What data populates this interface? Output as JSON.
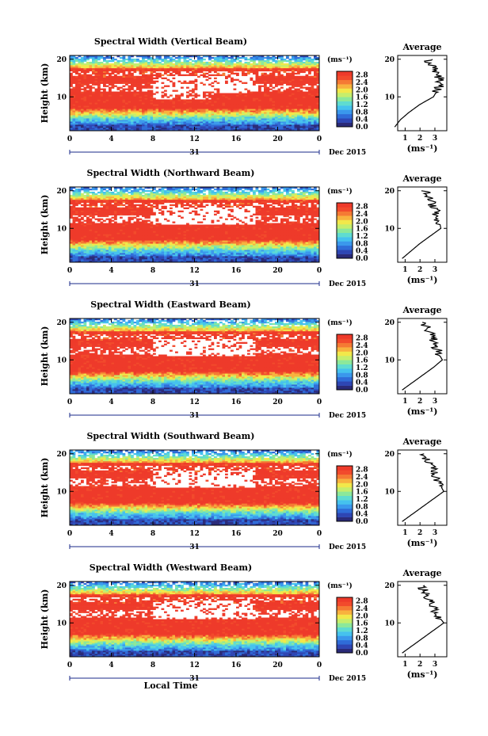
{
  "figure": {
    "xlabel": "Local Time",
    "ylabel": "Height (km)",
    "day_label": "31",
    "month_label": "Dec 2015",
    "colorbar_unit": "(ms⁻¹)",
    "avg_title": "Average",
    "avg_xlabel": "(ms⁻¹)"
  },
  "colormap": [
    "#2a2a78",
    "#2e46b4",
    "#2f6cd8",
    "#3a98ec",
    "#45c2ee",
    "#5fdcd0",
    "#8ce89a",
    "#c6ee6c",
    "#f2e84a",
    "#f8b23e",
    "#f57a34",
    "#f24a2c",
    "#ee3a2a"
  ],
  "chart_data": [
    {
      "type": "heatmap",
      "title": "Spectral Width (Vertical Beam)",
      "x_ticks": [
        "0",
        "4",
        "8",
        "12",
        "16",
        "20",
        "0"
      ],
      "xlim": [
        0,
        24
      ],
      "y_ticks": [
        "20",
        "10"
      ],
      "ylim": [
        1,
        21
      ],
      "colorbar_ticks": [
        "2.8",
        "2.4",
        "2.0",
        "1.6",
        "1.2",
        "0.8",
        "0.4",
        "0.0"
      ],
      "clim": [
        0,
        3.0
      ],
      "profile": [
        {
          "h": 2,
          "v": 0.3
        },
        {
          "h": 4,
          "v": 0.7
        },
        {
          "h": 6,
          "v": 1.3
        },
        {
          "h": 8,
          "v": 2.0
        },
        {
          "h": 10,
          "v": 2.9
        },
        {
          "h": 12,
          "v": 3.2
        },
        {
          "h": 14,
          "v": 3.4
        },
        {
          "h": 16,
          "v": 3.2
        },
        {
          "h": 18,
          "v": 2.8
        },
        {
          "h": 20,
          "v": 2.5
        }
      ],
      "avg_xticks": [
        "1",
        "2",
        "3"
      ],
      "avg_xlim": [
        0.5,
        3.8
      ],
      "avg_yticks": [
        "20",
        "10"
      ]
    },
    {
      "type": "heatmap",
      "title": "Spectral Width (Northward Beam)",
      "x_ticks": [
        "0",
        "4",
        "8",
        "12",
        "16",
        "20",
        "0"
      ],
      "xlim": [
        0,
        24
      ],
      "y_ticks": [
        "20",
        "10"
      ],
      "ylim": [
        1,
        21
      ],
      "colorbar_ticks": [
        "2.8",
        "2.4",
        "2.0",
        "1.6",
        "1.2",
        "0.8",
        "0.4",
        "0.0"
      ],
      "clim": [
        0,
        3.0
      ],
      "profile": [
        {
          "h": 2,
          "v": 0.8
        },
        {
          "h": 4,
          "v": 1.4
        },
        {
          "h": 6,
          "v": 2.0
        },
        {
          "h": 8,
          "v": 2.7
        },
        {
          "h": 10,
          "v": 3.4
        },
        {
          "h": 12,
          "v": 3.3
        },
        {
          "h": 14,
          "v": 3.1
        },
        {
          "h": 16,
          "v": 2.9
        },
        {
          "h": 18,
          "v": 2.6
        },
        {
          "h": 20,
          "v": 2.4
        }
      ],
      "avg_xticks": [
        "1",
        "2",
        "3"
      ],
      "avg_xlim": [
        0.5,
        3.8
      ],
      "avg_yticks": [
        "20",
        "10"
      ]
    },
    {
      "type": "heatmap",
      "title": "Spectral Width (Eastward Beam)",
      "x_ticks": [
        "0",
        "4",
        "8",
        "12",
        "16",
        "20",
        "0"
      ],
      "xlim": [
        0,
        24
      ],
      "y_ticks": [
        "20",
        "10"
      ],
      "ylim": [
        1,
        21
      ],
      "colorbar_ticks": [
        "2.8",
        "2.4",
        "2.0",
        "1.6",
        "1.2",
        "0.8",
        "0.4",
        "0.0"
      ],
      "clim": [
        0,
        3.0
      ],
      "profile": [
        {
          "h": 2,
          "v": 0.8
        },
        {
          "h": 4,
          "v": 1.5
        },
        {
          "h": 6,
          "v": 2.2
        },
        {
          "h": 8,
          "v": 2.9
        },
        {
          "h": 10,
          "v": 3.5
        },
        {
          "h": 12,
          "v": 3.2
        },
        {
          "h": 14,
          "v": 3.0
        },
        {
          "h": 16,
          "v": 2.8
        },
        {
          "h": 18,
          "v": 2.5
        },
        {
          "h": 20,
          "v": 2.3
        }
      ],
      "avg_xticks": [
        "1",
        "2",
        "3"
      ],
      "avg_xlim": [
        0.5,
        3.8
      ],
      "avg_yticks": [
        "20",
        "10"
      ]
    },
    {
      "type": "heatmap",
      "title": "Spectral Width (Southward Beam)",
      "x_ticks": [
        "0",
        "4",
        "8",
        "12",
        "16",
        "20",
        "0"
      ],
      "xlim": [
        0,
        24
      ],
      "y_ticks": [
        "20",
        "10"
      ],
      "ylim": [
        1,
        21
      ],
      "colorbar_ticks": [
        "2.8",
        "2.4",
        "2.0",
        "1.6",
        "1.2",
        "0.8",
        "0.4",
        "0.0"
      ],
      "clim": [
        0,
        3.0
      ],
      "profile": [
        {
          "h": 2,
          "v": 0.8
        },
        {
          "h": 4,
          "v": 1.5
        },
        {
          "h": 6,
          "v": 2.2
        },
        {
          "h": 8,
          "v": 2.9
        },
        {
          "h": 10,
          "v": 3.6
        },
        {
          "h": 12,
          "v": 3.3
        },
        {
          "h": 14,
          "v": 3.0
        },
        {
          "h": 16,
          "v": 2.8
        },
        {
          "h": 18,
          "v": 2.5
        },
        {
          "h": 20,
          "v": 2.2
        }
      ],
      "avg_xticks": [
        "1",
        "2",
        "3"
      ],
      "avg_xlim": [
        0.5,
        3.8
      ],
      "avg_yticks": [
        "20",
        "10"
      ]
    },
    {
      "type": "heatmap",
      "title": "Spectral Width (Westward Beam)",
      "x_ticks": [
        "0",
        "4",
        "8",
        "12",
        "16",
        "20",
        "0"
      ],
      "xlim": [
        0,
        24
      ],
      "y_ticks": [
        "20",
        "10"
      ],
      "ylim": [
        1,
        21
      ],
      "colorbar_ticks": [
        "2.8",
        "2.4",
        "2.0",
        "1.6",
        "1.2",
        "0.8",
        "0.4",
        "0.0"
      ],
      "clim": [
        0,
        3.0
      ],
      "profile": [
        {
          "h": 2,
          "v": 0.8
        },
        {
          "h": 4,
          "v": 1.5
        },
        {
          "h": 6,
          "v": 2.2
        },
        {
          "h": 8,
          "v": 2.9
        },
        {
          "h": 10,
          "v": 3.6
        },
        {
          "h": 12,
          "v": 3.2
        },
        {
          "h": 14,
          "v": 2.9
        },
        {
          "h": 16,
          "v": 2.7
        },
        {
          "h": 18,
          "v": 2.4
        },
        {
          "h": 20,
          "v": 2.1
        }
      ],
      "avg_xticks": [
        "1",
        "2",
        "3"
      ],
      "avg_xlim": [
        0.5,
        3.8
      ],
      "avg_yticks": [
        "20",
        "10"
      ]
    }
  ]
}
